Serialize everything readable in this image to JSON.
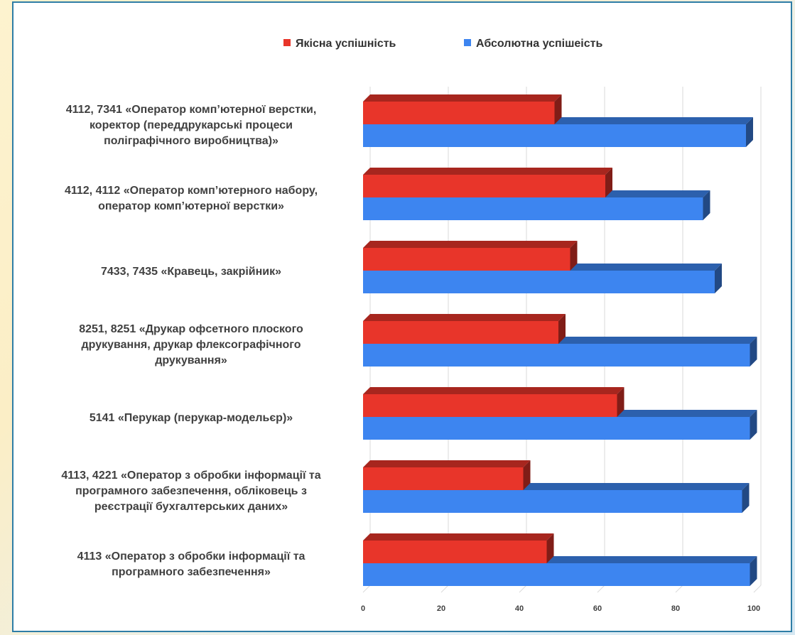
{
  "chart_data": {
    "type": "bar",
    "orientation": "horizontal",
    "three_d": true,
    "categories": [
      [
        "4112, 7341 «Оператор комп’ютерної верстки,",
        "коректор (переддрукарські процеси",
        "поліграфічного виробництва)»"
      ],
      [
        "4112, 4112 «Оператор комп’ютерного набору,",
        "оператор комп’ютерної верстки»"
      ],
      [
        "7433, 7435 «Кравець, закрійник»"
      ],
      [
        "8251, 8251 «Друкар офсетного плоского",
        "друкування, друкар флексографічного",
        "друкування»"
      ],
      [
        "5141 «Перукар (перукар-модельєр)»"
      ],
      [
        "4113, 4221 «Оператор з обробки інформації та",
        "програмного забезпечення, обліковець з",
        "реєстрації бухгалтерських даних»"
      ],
      [
        "4113 «Оператор з обробки інформації та",
        "програмного забезпечення»"
      ]
    ],
    "series": [
      {
        "name": "Якісна успішність",
        "color": "#e8352a",
        "values": [
          49,
          62,
          53,
          50,
          65,
          41,
          47
        ]
      },
      {
        "name": "Абсолютна успішеість",
        "color": "#3d85f0",
        "values": [
          98,
          87,
          90,
          99,
          99,
          97,
          99
        ]
      }
    ],
    "xlim": [
      0,
      100
    ],
    "xticks": [
      "0",
      "20",
      "40",
      "60",
      "80",
      "100"
    ],
    "grid": true,
    "legend_position": "top"
  }
}
